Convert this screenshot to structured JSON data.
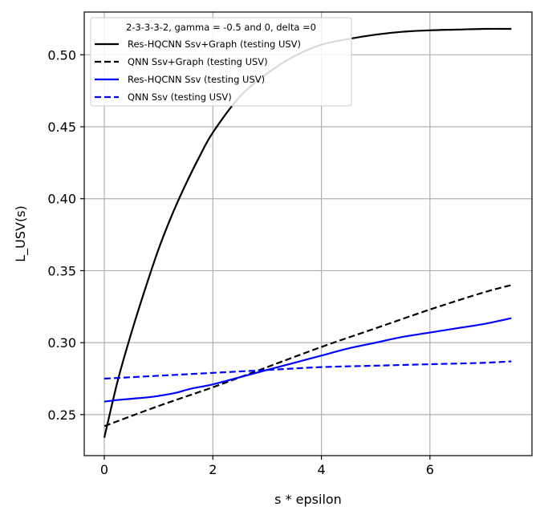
{
  "chart_data": {
    "type": "line",
    "title": "",
    "xlabel": "s * epsilon",
    "ylabel": "L_USV(s)",
    "xlim": [
      -0.37,
      7.88
    ],
    "ylim": [
      0.2215,
      0.5297
    ],
    "x_ticks": [
      0,
      2,
      4,
      6
    ],
    "x_tick_labels": [
      "0",
      "2",
      "4",
      "6"
    ],
    "y_ticks": [
      0.25,
      0.3,
      0.35,
      0.4,
      0.45,
      0.5
    ],
    "y_tick_labels": [
      "0.25",
      "0.30",
      "0.35",
      "0.40",
      "0.45",
      "0.50"
    ],
    "grid": true,
    "legend": {
      "title": "2-3-3-3-2, gamma = -0.5 and 0, delta =0",
      "placement": "top-left"
    },
    "series": [
      {
        "name": "Res-HQCNN Ssv+Graph (testing USV)",
        "color": "#000000",
        "dash": "solid",
        "x": [
          0,
          0.25,
          0.5,
          0.75,
          1.0,
          1.25,
          1.5,
          1.75,
          2.0,
          2.5,
          3.0,
          3.5,
          4.0,
          4.5,
          5.0,
          5.5,
          6.0,
          6.5,
          7.0,
          7.5
        ],
        "y": [
          0.234,
          0.274,
          0.307,
          0.337,
          0.365,
          0.389,
          0.41,
          0.429,
          0.446,
          0.471,
          0.487,
          0.499,
          0.507,
          0.511,
          0.514,
          0.516,
          0.517,
          0.5175,
          0.518,
          0.518
        ]
      },
      {
        "name": "QNN Ssv+Graph (testing USV)",
        "color": "#000000",
        "dash": "dashed",
        "x": [
          0,
          1,
          2,
          3,
          4,
          5,
          6,
          7,
          7.5
        ],
        "y": [
          0.242,
          0.256,
          0.269,
          0.283,
          0.297,
          0.31,
          0.323,
          0.335,
          0.34
        ]
      },
      {
        "name": "Res-HQCNN Ssv (testing USV)",
        "color": "#0000ff",
        "dash": "solid",
        "x": [
          0,
          0.2,
          0.5,
          0.8,
          1.0,
          1.3,
          1.6,
          2.0,
          2.5,
          3.0,
          3.5,
          4.0,
          4.5,
          5.0,
          5.5,
          6.0,
          6.5,
          7.0,
          7.5
        ],
        "y": [
          0.259,
          0.26,
          0.261,
          0.262,
          0.263,
          0.265,
          0.268,
          0.271,
          0.276,
          0.281,
          0.286,
          0.291,
          0.296,
          0.3,
          0.304,
          0.307,
          0.31,
          0.313,
          0.317
        ]
      },
      {
        "name": "QNN Ssv (testing USV)",
        "color": "#0000ff",
        "dash": "dashed",
        "x": [
          0,
          1,
          2,
          3,
          4,
          5,
          6,
          7,
          7.5
        ],
        "y": [
          0.275,
          0.277,
          0.279,
          0.281,
          0.283,
          0.284,
          0.285,
          0.286,
          0.287
        ]
      }
    ]
  }
}
